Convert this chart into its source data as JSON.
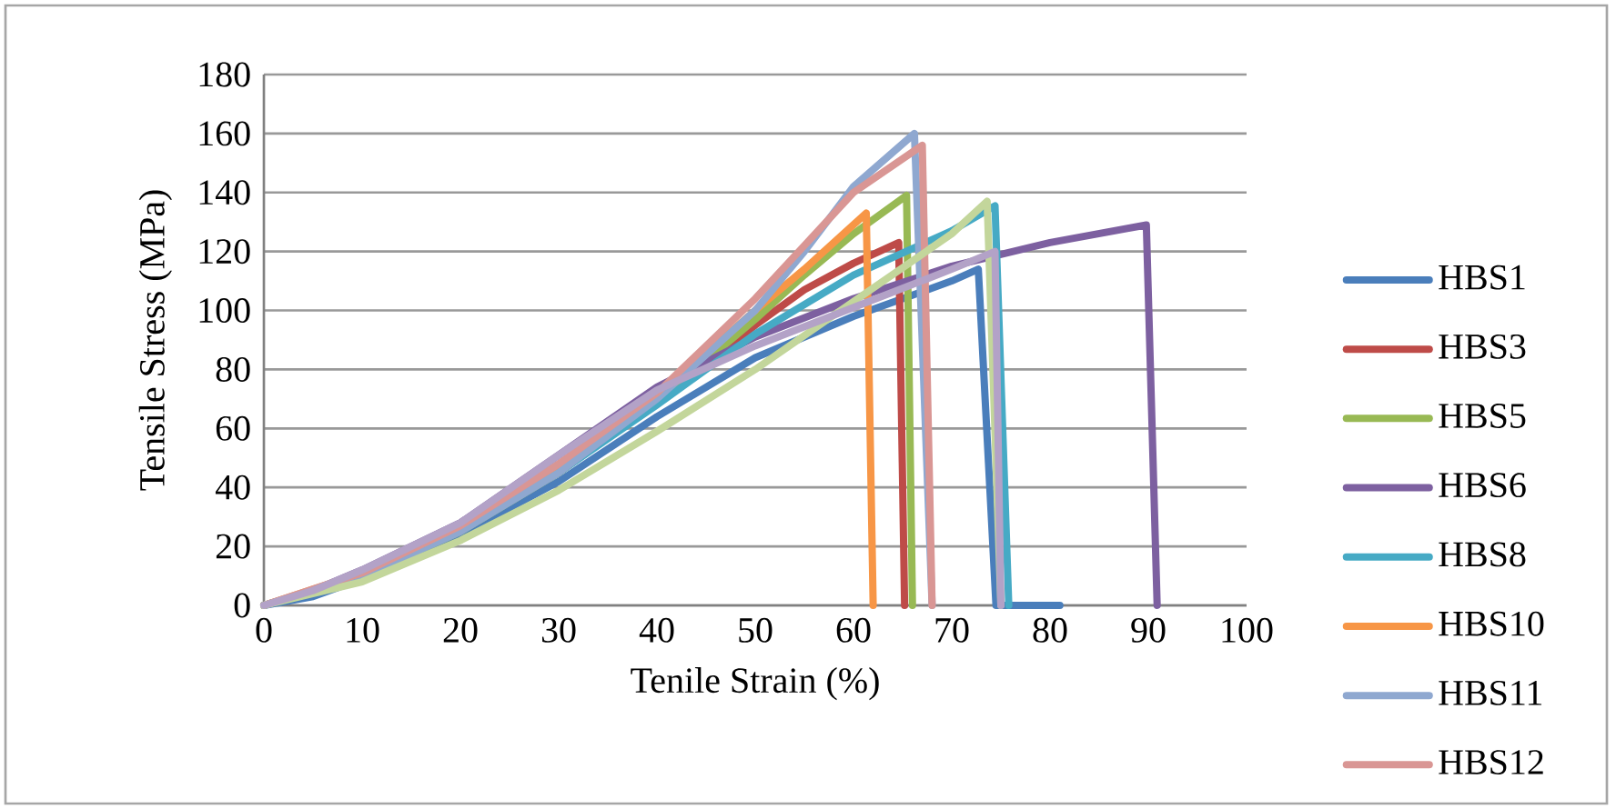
{
  "chart_data": {
    "type": "line",
    "xlabel": "Tenile Strain (%)",
    "ylabel": "Tensile Stress (MPa)",
    "xlim": [
      0,
      100
    ],
    "ylim": [
      0,
      180
    ],
    "xticks": [
      0,
      10,
      20,
      30,
      40,
      50,
      60,
      70,
      80,
      90,
      100
    ],
    "yticks": [
      0,
      20,
      40,
      60,
      80,
      100,
      120,
      140,
      160,
      180
    ],
    "grid": "y",
    "legend": "right",
    "marker": "none",
    "line_style": "solid",
    "series": [
      {
        "name": "HBS1",
        "color": "#4a7ebb",
        "x": [
          0,
          5,
          10,
          20,
          30,
          40,
          50,
          60,
          70,
          72.7,
          74.5,
          81
        ],
        "values": [
          0,
          3,
          9,
          24,
          42,
          64,
          84,
          98,
          110,
          114,
          0,
          0
        ]
      },
      {
        "name": "HBS3",
        "color": "#be4b48",
        "x": [
          0,
          10,
          20,
          30,
          40,
          50,
          55,
          60,
          64.6,
          65.2
        ],
        "values": [
          0,
          10,
          25,
          45,
          69,
          95,
          107,
          116,
          123,
          0
        ]
      },
      {
        "name": "HBS5",
        "color": "#98b954",
        "x": [
          0,
          10,
          20,
          30,
          40,
          50,
          55,
          60,
          65.4,
          66
        ],
        "values": [
          0,
          10,
          25,
          45,
          69,
          97,
          112,
          126,
          139,
          0
        ]
      },
      {
        "name": "HBS6",
        "color": "#7d60a0",
        "x": [
          0,
          5,
          10,
          20,
          30,
          40,
          50,
          60,
          70,
          80,
          89.8,
          90.9
        ],
        "values": [
          0,
          5,
          12,
          28,
          51,
          74,
          91,
          104,
          115,
          123,
          129,
          0
        ]
      },
      {
        "name": "HBS8",
        "color": "#46aac5",
        "x": [
          0,
          10,
          20,
          30,
          40,
          50,
          60,
          70,
          74.4,
          75.8
        ],
        "values": [
          0,
          10,
          25,
          45,
          68,
          92,
          112,
          127,
          135.5,
          0
        ]
      },
      {
        "name": "HBS10",
        "color": "#f79646",
        "x": [
          0,
          10,
          20,
          30,
          40,
          50,
          55,
          61.3,
          62
        ],
        "values": [
          0,
          11,
          27,
          47,
          71,
          100,
          114,
          133,
          0
        ]
      },
      {
        "name": "HBS11",
        "color": "#8fa8d0",
        "x": [
          0,
          10,
          20,
          30,
          40,
          50,
          55,
          60,
          66.2,
          68
        ],
        "values": [
          0,
          10,
          25,
          45,
          70,
          100,
          120,
          142,
          160,
          0
        ]
      },
      {
        "name": "HBS12",
        "color": "#d99694",
        "x": [
          0,
          10,
          20,
          30,
          40,
          50,
          55,
          60,
          67,
          68
        ],
        "values": [
          0,
          11,
          27,
          48,
          72,
          104,
          122,
          140,
          156,
          0
        ]
      },
      {
        "color": "#c3d69b",
        "x": [
          0,
          10,
          20,
          30,
          40,
          50,
          60,
          70,
          73.6,
          75
        ],
        "values": [
          0,
          8,
          22,
          39,
          59,
          80,
          103,
          126,
          137,
          0
        ]
      },
      {
        "color": "#b3a2c7",
        "x": [
          0,
          5,
          10,
          20,
          30,
          40,
          50,
          60,
          70,
          74.4,
          75
        ],
        "values": [
          0,
          5,
          12,
          28,
          51,
          73,
          88,
          101,
          114,
          120,
          0
        ]
      }
    ]
  }
}
